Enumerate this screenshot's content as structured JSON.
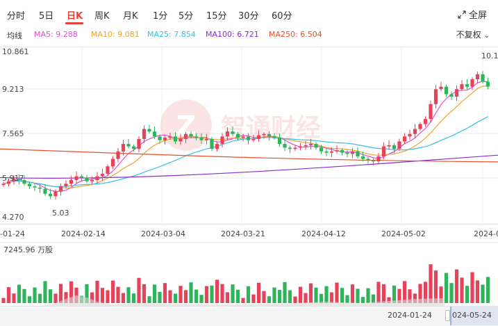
{
  "tabs": [
    "分时",
    "5日",
    "日K",
    "周K",
    "月K",
    "1分",
    "5分",
    "15分",
    "30分",
    "60分"
  ],
  "active_tab": "日K",
  "fullscreen_label": "全屏",
  "ma": {
    "label": "均线",
    "ma5": "MA5: 9.288",
    "ma10": "MA10: 9.081",
    "ma25": "MA25: 7.854",
    "ma100": "MA100: 6.721",
    "ma250": "MA250: 6.504",
    "colors": {
      "ma5": "#e24ed6",
      "ma10": "#f2a22c",
      "ma25": "#36c0e4",
      "ma100": "#8a2ad4",
      "ma250": "#e8502a"
    }
  },
  "adjust_label": "不复权",
  "price_axis": [
    "10.861",
    "9.213",
    "7.565",
    "5.917",
    "4.270"
  ],
  "high_marker": "10.1",
  "low_marker": "5.03",
  "x_axis": [
    "-01-24",
    "2024-02-14",
    "2024-03-04",
    "2024-03-21",
    "2024-04-12",
    "2024-05-02",
    "2024-0"
  ],
  "volume_label": "7245.96 万股",
  "watermark": "智通财经",
  "scroll_range": {
    "start": "2024-01-24",
    "end": "024-05-24"
  },
  "colors": {
    "up": "#e8415a",
    "down": "#2fb35b",
    "accent": "#e8413b"
  }
}
